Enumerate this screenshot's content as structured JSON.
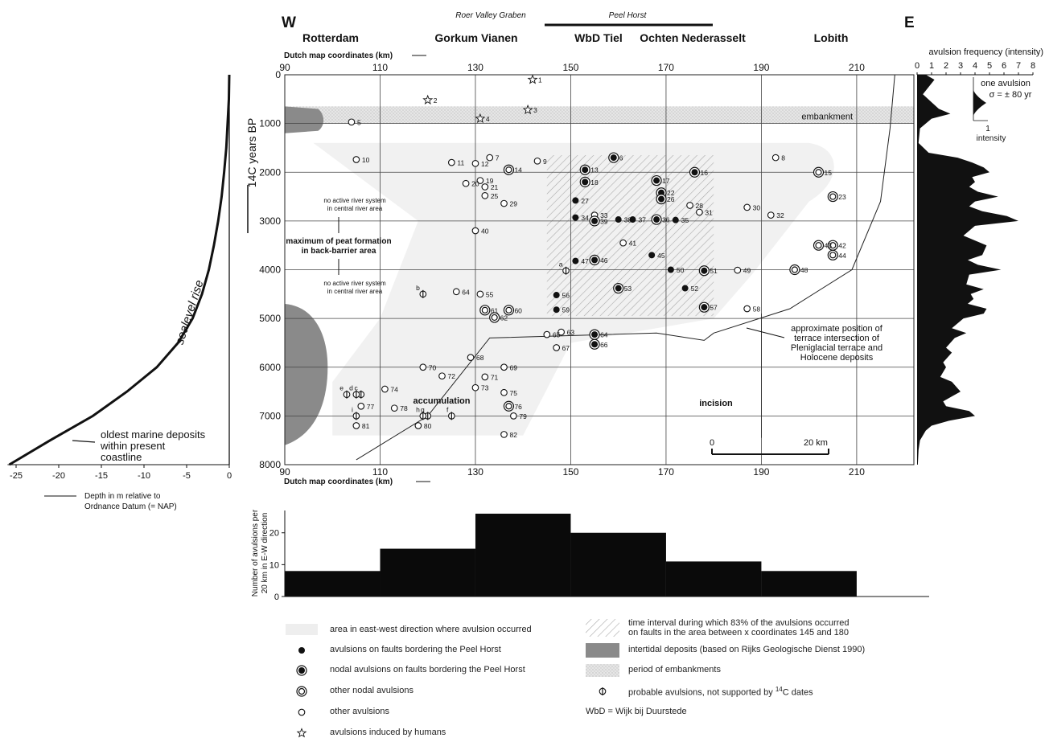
{
  "header": {
    "west": "W",
    "east": "E",
    "roer_valley_graben": "Roer Valley Graben",
    "peel_horst": "Peel Horst",
    "places": [
      "Rotterdam",
      "Gorkum Vianen",
      "WbD Tiel",
      "Ochten Nederasselt",
      "Lobith"
    ]
  },
  "chart_data": [
    {
      "type": "scatter",
      "title": "",
      "xlabel": "Dutch map coordinates (km)",
      "ylabel": "14C years BP",
      "xlim": [
        90,
        222
      ],
      "ylim": [
        8000,
        0
      ],
      "xticks": [
        90,
        110,
        130,
        150,
        170,
        190,
        210
      ],
      "yticks": [
        0,
        1000,
        2000,
        3000,
        4000,
        5000,
        6000,
        7000,
        8000
      ],
      "grid": true,
      "annotations": {
        "embankment": "embankment",
        "no_active_1": [
          "no active river system",
          "in central river area"
        ],
        "peat": [
          "maximum of peat formation",
          "in back-barrier area"
        ],
        "no_active_2": [
          "no active river system",
          "in central river area"
        ],
        "accumulation": "accumulation",
        "incision": "incision",
        "terrace": [
          "approximate position of",
          "terrace intersection of",
          "Pleniglacial terrace and",
          "Holocene deposits"
        ],
        "scale_0": "0",
        "scale_20": "20 km"
      },
      "terrace_line": [
        [
          105,
          7900
        ],
        [
          120,
          7000
        ],
        [
          133,
          5400
        ],
        [
          168,
          5300
        ],
        [
          178,
          5450
        ],
        [
          180,
          5300
        ],
        [
          196,
          4800
        ],
        [
          209,
          4000
        ],
        [
          215,
          2600
        ],
        [
          217,
          1100
        ],
        [
          218,
          0
        ]
      ],
      "points": [
        {
          "label": "1",
          "x": 142,
          "y": 100,
          "kind": "human"
        },
        {
          "label": "2",
          "x": 120,
          "y": 520,
          "kind": "human"
        },
        {
          "label": "3",
          "x": 141,
          "y": 720,
          "kind": "human"
        },
        {
          "label": "4",
          "x": 131,
          "y": 900,
          "kind": "human"
        },
        {
          "label": "5",
          "x": 104,
          "y": 970,
          "kind": "other"
        },
        {
          "label": "6",
          "x": 159,
          "y": 1700,
          "kind": "nodal_fault"
        },
        {
          "label": "7",
          "x": 133,
          "y": 1700,
          "kind": "other"
        },
        {
          "label": "8",
          "x": 193,
          "y": 1700,
          "kind": "other"
        },
        {
          "label": "9",
          "x": 143,
          "y": 1770,
          "kind": "other"
        },
        {
          "label": "10",
          "x": 105,
          "y": 1740,
          "kind": "other"
        },
        {
          "label": "11",
          "x": 125,
          "y": 1800,
          "kind": "other"
        },
        {
          "label": "12",
          "x": 130,
          "y": 1820,
          "kind": "other"
        },
        {
          "label": "13",
          "x": 153,
          "y": 1950,
          "kind": "nodal_fault"
        },
        {
          "label": "14",
          "x": 137,
          "y": 1950,
          "kind": "nodal_other"
        },
        {
          "label": "15",
          "x": 202,
          "y": 2000,
          "kind": "nodal_other"
        },
        {
          "label": "16",
          "x": 176,
          "y": 2000,
          "kind": "nodal_fault"
        },
        {
          "label": "17",
          "x": 168,
          "y": 2170,
          "kind": "nodal_fault"
        },
        {
          "label": "18",
          "x": 153,
          "y": 2200,
          "kind": "nodal_fault"
        },
        {
          "label": "19",
          "x": 131,
          "y": 2170,
          "kind": "other"
        },
        {
          "label": "20",
          "x": 128,
          "y": 2230,
          "kind": "other"
        },
        {
          "label": "21",
          "x": 132,
          "y": 2300,
          "kind": "other"
        },
        {
          "label": "22",
          "x": 169,
          "y": 2420,
          "kind": "nodal_fault"
        },
        {
          "label": "23",
          "x": 205,
          "y": 2500,
          "kind": "nodal_other"
        },
        {
          "label": "25",
          "x": 132,
          "y": 2480,
          "kind": "other"
        },
        {
          "label": "26",
          "x": 169,
          "y": 2550,
          "kind": "nodal_fault"
        },
        {
          "label": "27",
          "x": 151,
          "y": 2580,
          "kind": "fault"
        },
        {
          "label": "28",
          "x": 175,
          "y": 2680,
          "kind": "other"
        },
        {
          "label": "29",
          "x": 136,
          "y": 2640,
          "kind": "other"
        },
        {
          "label": "30",
          "x": 187,
          "y": 2720,
          "kind": "other"
        },
        {
          "label": "31",
          "x": 177,
          "y": 2820,
          "kind": "other"
        },
        {
          "label": "32",
          "x": 192,
          "y": 2880,
          "kind": "other"
        },
        {
          "label": "33",
          "x": 155,
          "y": 2880,
          "kind": "other"
        },
        {
          "label": "34",
          "x": 151,
          "y": 2930,
          "kind": "fault"
        },
        {
          "label": "35",
          "x": 172,
          "y": 2980,
          "kind": "fault"
        },
        {
          "label": "36",
          "x": 168,
          "y": 2970,
          "kind": "nodal_fault"
        },
        {
          "label": "37",
          "x": 163,
          "y": 2970,
          "kind": "fault"
        },
        {
          "label": "38",
          "x": 160,
          "y": 2970,
          "kind": "fault"
        },
        {
          "label": "39",
          "x": 155,
          "y": 3000,
          "kind": "nodal_fault"
        },
        {
          "label": "40",
          "x": 130,
          "y": 3200,
          "kind": "other"
        },
        {
          "label": "41",
          "x": 161,
          "y": 3450,
          "kind": "other"
        },
        {
          "label": "42",
          "x": 205,
          "y": 3500,
          "kind": "nodal_other"
        },
        {
          "label": "43",
          "x": 202,
          "y": 3500,
          "kind": "nodal_other"
        },
        {
          "label": "44",
          "x": 205,
          "y": 3700,
          "kind": "nodal_other"
        },
        {
          "label": "45",
          "x": 167,
          "y": 3700,
          "kind": "fault"
        },
        {
          "label": "46",
          "x": 155,
          "y": 3800,
          "kind": "nodal_fault"
        },
        {
          "label": "47",
          "x": 151,
          "y": 3820,
          "kind": "fault"
        },
        {
          "label": "48",
          "x": 197,
          "y": 4000,
          "kind": "nodal_other"
        },
        {
          "label": "49",
          "x": 185,
          "y": 4010,
          "kind": "other"
        },
        {
          "label": "50",
          "x": 171,
          "y": 4000,
          "kind": "fault"
        },
        {
          "label": "51",
          "x": 178,
          "y": 4020,
          "kind": "nodal_fault"
        },
        {
          "label": "52",
          "x": 174,
          "y": 4380,
          "kind": "fault"
        },
        {
          "label": "53",
          "x": 160,
          "y": 4380,
          "kind": "nodal_fault"
        },
        {
          "label": "55",
          "x": 131,
          "y": 4500,
          "kind": "other"
        },
        {
          "label": "56",
          "x": 147,
          "y": 4520,
          "kind": "fault"
        },
        {
          "label": "57",
          "x": 178,
          "y": 4770,
          "kind": "nodal_fault"
        },
        {
          "label": "58",
          "x": 187,
          "y": 4800,
          "kind": "other"
        },
        {
          "label": "59",
          "x": 147,
          "y": 4820,
          "kind": "fault"
        },
        {
          "label": "60",
          "x": 137,
          "y": 4830,
          "kind": "nodal_other"
        },
        {
          "label": "61",
          "x": 132,
          "y": 4830,
          "kind": "nodal_other"
        },
        {
          "label": "62",
          "x": 134,
          "y": 4980,
          "kind": "nodal_other"
        },
        {
          "label": "63",
          "x": 148,
          "y": 5280,
          "kind": "other"
        },
        {
          "label": "64",
          "x": 126,
          "y": 4450,
          "kind": "other"
        },
        {
          "label": "64",
          "x": 155,
          "y": 5330,
          "kind": "nodal_fault"
        },
        {
          "label": "65",
          "x": 145,
          "y": 5330,
          "kind": "other"
        },
        {
          "label": "66",
          "x": 155,
          "y": 5530,
          "kind": "nodal_fault"
        },
        {
          "label": "67",
          "x": 147,
          "y": 5600,
          "kind": "other"
        },
        {
          "label": "68",
          "x": 129,
          "y": 5800,
          "kind": "other"
        },
        {
          "label": "69",
          "x": 136,
          "y": 6000,
          "kind": "other"
        },
        {
          "label": "70",
          "x": 119,
          "y": 6000,
          "kind": "other"
        },
        {
          "label": "71",
          "x": 132,
          "y": 6200,
          "kind": "other"
        },
        {
          "label": "72",
          "x": 123,
          "y": 6180,
          "kind": "other"
        },
        {
          "label": "73",
          "x": 130,
          "y": 6420,
          "kind": "other"
        },
        {
          "label": "74",
          "x": 111,
          "y": 6450,
          "kind": "other"
        },
        {
          "label": "75",
          "x": 136,
          "y": 6520,
          "kind": "other"
        },
        {
          "label": "76",
          "x": 137,
          "y": 6800,
          "kind": "nodal_other"
        },
        {
          "label": "77",
          "x": 106,
          "y": 6800,
          "kind": "other"
        },
        {
          "label": "78",
          "x": 113,
          "y": 6840,
          "kind": "other"
        },
        {
          "label": "79",
          "x": 138,
          "y": 7000,
          "kind": "other"
        },
        {
          "label": "80",
          "x": 118,
          "y": 7200,
          "kind": "other"
        },
        {
          "label": "81",
          "x": 105,
          "y": 7200,
          "kind": "other"
        },
        {
          "label": "82",
          "x": 136,
          "y": 7380,
          "kind": "other"
        },
        {
          "label": "a",
          "x": 149,
          "y": 4020,
          "kind": "probable"
        },
        {
          "label": "b",
          "x": 119,
          "y": 4500,
          "kind": "probable"
        },
        {
          "label": "c",
          "x": 106,
          "y": 6560,
          "kind": "probable"
        },
        {
          "label": "d",
          "x": 105,
          "y": 6560,
          "kind": "probable"
        },
        {
          "label": "e",
          "x": 103,
          "y": 6560,
          "kind": "probable"
        },
        {
          "label": "f",
          "x": 125,
          "y": 7000,
          "kind": "probable"
        },
        {
          "label": "g",
          "x": 120,
          "y": 7000,
          "kind": "probable"
        },
        {
          "label": "h",
          "x": 119,
          "y": 7000,
          "kind": "probable"
        },
        {
          "label": "i",
          "x": 105,
          "y": 7000,
          "kind": "probable"
        }
      ]
    },
    {
      "type": "line",
      "title": "avulsion frequency (intensity)",
      "xlabel": "",
      "ylabel": "",
      "xlim": [
        0,
        8
      ],
      "xticks": [
        0,
        1,
        2,
        3,
        4,
        5,
        6,
        7,
        8
      ],
      "inset": [
        "one avulsion",
        "σ = ± 80 yr",
        "1",
        "intensity"
      ],
      "profile": [
        [
          0,
          0.6
        ],
        [
          100,
          1.2
        ],
        [
          400,
          0.4
        ],
        [
          700,
          1.5
        ],
        [
          800,
          2.3
        ],
        [
          900,
          1.0
        ],
        [
          1100,
          0.2
        ],
        [
          1400,
          0.1
        ],
        [
          1600,
          0.8
        ],
        [
          1700,
          2.8
        ],
        [
          1800,
          3.8
        ],
        [
          1900,
          4.6
        ],
        [
          2000,
          5.0
        ],
        [
          2100,
          3.8
        ],
        [
          2200,
          4.0
        ],
        [
          2300,
          3.6
        ],
        [
          2400,
          4.2
        ],
        [
          2500,
          5.6
        ],
        [
          2600,
          4.0
        ],
        [
          2700,
          3.6
        ],
        [
          2800,
          4.5
        ],
        [
          2900,
          6.2
        ],
        [
          3000,
          7.0
        ],
        [
          3100,
          4.0
        ],
        [
          3300,
          3.2
        ],
        [
          3500,
          4.8
        ],
        [
          3700,
          4.5
        ],
        [
          3800,
          3.5
        ],
        [
          3900,
          4.2
        ],
        [
          4000,
          5.8
        ],
        [
          4100,
          3.6
        ],
        [
          4300,
          3.4
        ],
        [
          4400,
          4.6
        ],
        [
          4500,
          3.7
        ],
        [
          4600,
          3.9
        ],
        [
          4700,
          3.5
        ],
        [
          4800,
          4.8
        ],
        [
          4900,
          4.6
        ],
        [
          5000,
          3.2
        ],
        [
          5200,
          2.4
        ],
        [
          5300,
          3.4
        ],
        [
          5400,
          2.6
        ],
        [
          5600,
          2.0
        ],
        [
          5700,
          2.4
        ],
        [
          5900,
          1.8
        ],
        [
          6000,
          2.0
        ],
        [
          6200,
          1.6
        ],
        [
          6300,
          2.4
        ],
        [
          6500,
          3.0
        ],
        [
          6600,
          2.4
        ],
        [
          6700,
          1.8
        ],
        [
          6800,
          2.0
        ],
        [
          6900,
          3.6
        ],
        [
          7000,
          4.0
        ],
        [
          7100,
          2.2
        ],
        [
          7200,
          1.0
        ],
        [
          7300,
          0.6
        ],
        [
          7500,
          0.2
        ],
        [
          7700,
          0.1
        ],
        [
          8000,
          0.05
        ]
      ]
    },
    {
      "type": "line",
      "title": "",
      "xlabel": "Depth in m relative to Ordnance Datum (= NAP)",
      "ylabel": "",
      "xlim": [
        -25,
        0
      ],
      "xticks": [
        -25,
        -20,
        -15,
        -10,
        -5,
        0
      ],
      "curve_label": "sealevel rise",
      "annotation": [
        "oldest marine deposits",
        "within present",
        "coastline"
      ],
      "curve": [
        [
          -25.8,
          8000
        ],
        [
          -21,
          7500
        ],
        [
          -16,
          7000
        ],
        [
          -12,
          6500
        ],
        [
          -8.5,
          6000
        ],
        [
          -6,
          5500
        ],
        [
          -4.3,
          5000
        ],
        [
          -3.2,
          4500
        ],
        [
          -2.4,
          4000
        ],
        [
          -1.8,
          3500
        ],
        [
          -1.3,
          3000
        ],
        [
          -0.9,
          2500
        ],
        [
          -0.6,
          2000
        ],
        [
          -0.35,
          1500
        ],
        [
          -0.2,
          1000
        ],
        [
          -0.05,
          500
        ],
        [
          0,
          0
        ]
      ]
    },
    {
      "type": "bar",
      "title": "",
      "xlabel": "",
      "ylabel": "Number of avulsions per 20 km in E-W direction",
      "categories": [
        "90-110",
        "110-130",
        "130-150",
        "150-170",
        "170-190",
        "190-210"
      ],
      "values": [
        8,
        15,
        26,
        20,
        11,
        8
      ],
      "ylim": [
        0,
        27
      ],
      "yticks": [
        0,
        10,
        20
      ]
    }
  ],
  "legend": [
    {
      "symbol": "area",
      "text": "area in east-west direction where avulsion occurred"
    },
    {
      "symbol": "fault",
      "text": "avulsions on faults bordering the Peel Horst"
    },
    {
      "symbol": "nodal_fault",
      "text": "nodal avulsions on faults bordering the Peel Horst"
    },
    {
      "symbol": "nodal_other",
      "text": "other nodal avulsions"
    },
    {
      "symbol": "other",
      "text": "other avulsions"
    },
    {
      "symbol": "human",
      "text": "avulsions induced by humans"
    },
    {
      "symbol": "hatch",
      "text": "time interval during which  83% of the avulsions occurred"
    },
    {
      "symbol": "none",
      "text": "on faults in the area between x coordinates 145 and 180"
    },
    {
      "symbol": "intertidal",
      "text": "intertidal deposits (based on Rijks Geologische Dienst 1990)"
    },
    {
      "symbol": "embank",
      "text": "period of embankments"
    },
    {
      "symbol": "probable",
      "text": "probable avulsions, not supported by"
    },
    {
      "symbol": "none",
      "text": "WbD = Wijk bij Duurstede"
    }
  ],
  "legend_sup": "14",
  "legend_c": "C dates"
}
